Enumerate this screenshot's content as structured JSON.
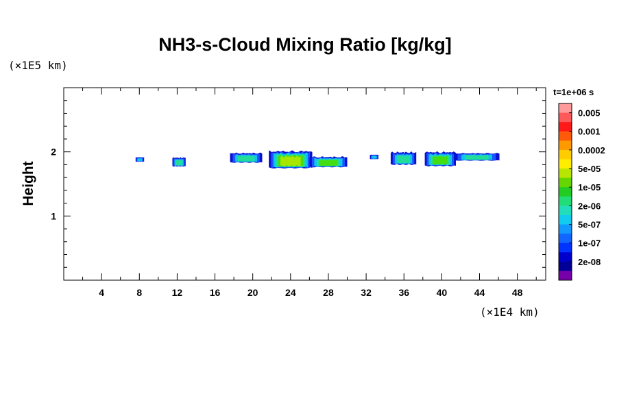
{
  "chart_data": {
    "type": "heatmap",
    "title": "NH3-s-Cloud Mixing Ratio [kg/kg]",
    "time_label": "t=1e+06 s",
    "xlabel": "",
    "ylabel": "Height",
    "x_unit_note": "(×1E4 km)",
    "y_unit_note": "(×1E5 km)",
    "xlim": [
      0,
      51
    ],
    "ylim": [
      0,
      3
    ],
    "x_ticks": [
      4,
      8,
      12,
      16,
      20,
      24,
      28,
      32,
      36,
      40,
      44,
      48
    ],
    "y_ticks": [
      1,
      2
    ],
    "x_minor_step": 2,
    "y_minor_step": 0.2,
    "colorbar": {
      "labels": [
        "0.005",
        "0.001",
        "0.0002",
        "5e-05",
        "1e-05",
        "2e-06",
        "5e-07",
        "1e-07",
        "2e-08"
      ],
      "colors": [
        "#ff9a9a",
        "#ff5a5a",
        "#ff1a1a",
        "#ff5a0a",
        "#ff9900",
        "#ffcc00",
        "#ffee00",
        "#b8e600",
        "#66d600",
        "#22cc22",
        "#22dd77",
        "#22ddbb",
        "#11ccee",
        "#1199ff",
        "#1166ff",
        "#0033ff",
        "#0000cc",
        "#000099",
        "#7700aa"
      ]
    },
    "cloud_patches": [
      {
        "x0": 7.6,
        "x1": 8.5,
        "ybot": 1.85,
        "ytop": 1.91,
        "level": 0.1
      },
      {
        "x0": 11.5,
        "x1": 12.9,
        "ybot": 1.78,
        "ytop": 1.9,
        "level": 0.35
      },
      {
        "x0": 17.6,
        "x1": 21.0,
        "ybot": 1.84,
        "ytop": 1.97,
        "level": 0.3
      },
      {
        "x0": 21.7,
        "x1": 26.3,
        "ybot": 1.76,
        "ytop": 1.99,
        "level": 0.82
      },
      {
        "x0": 26.0,
        "x1": 30.0,
        "ybot": 1.77,
        "ytop": 1.91,
        "level": 0.55
      },
      {
        "x0": 32.4,
        "x1": 33.3,
        "ybot": 1.89,
        "ytop": 1.95,
        "level": 0.1
      },
      {
        "x0": 34.6,
        "x1": 37.3,
        "ybot": 1.81,
        "ytop": 1.98,
        "level": 0.45
      },
      {
        "x0": 38.2,
        "x1": 41.5,
        "ybot": 1.79,
        "ytop": 1.98,
        "level": 0.5
      },
      {
        "x0": 41.3,
        "x1": 46.1,
        "ybot": 1.87,
        "ytop": 1.97,
        "level": 0.3
      }
    ]
  }
}
